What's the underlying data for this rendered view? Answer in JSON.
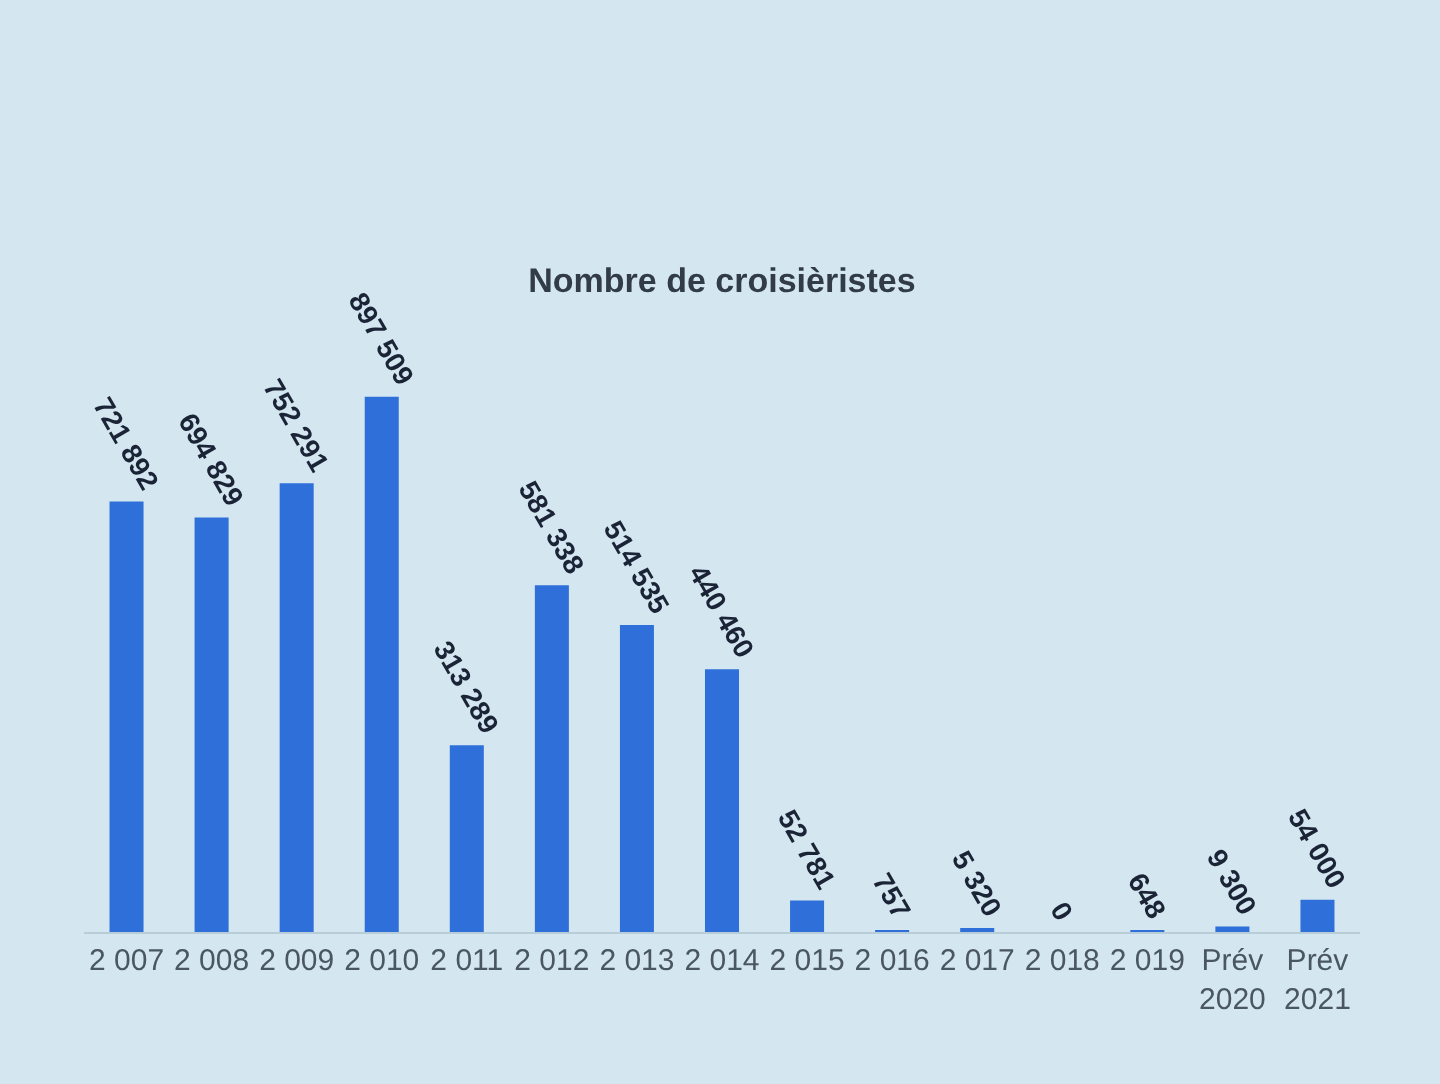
{
  "chart_data": {
    "type": "bar",
    "title": "Nombre de croisièristes",
    "categories": [
      "2 007",
      "2 008",
      "2 009",
      "2 010",
      "2 011",
      "2 012",
      "2 013",
      "2 014",
      "2 015",
      "2 016",
      "2 017",
      "2 018",
      "2 019",
      "Prév\n2020",
      "Prév\n2021"
    ],
    "values": [
      721892,
      694829,
      752291,
      897509,
      313289,
      581338,
      514535,
      440460,
      52781,
      757,
      5320,
      0,
      648,
      9300,
      54000
    ],
    "value_labels": [
      "721 892",
      "694 829",
      "752 291",
      "897 509",
      "313 289",
      "581 338",
      "514 535",
      "440 460",
      "52 781",
      "757",
      "5 320",
      "0",
      "648",
      "9 300",
      "54 000"
    ],
    "color": "#2e6fd9",
    "grid": false
  }
}
